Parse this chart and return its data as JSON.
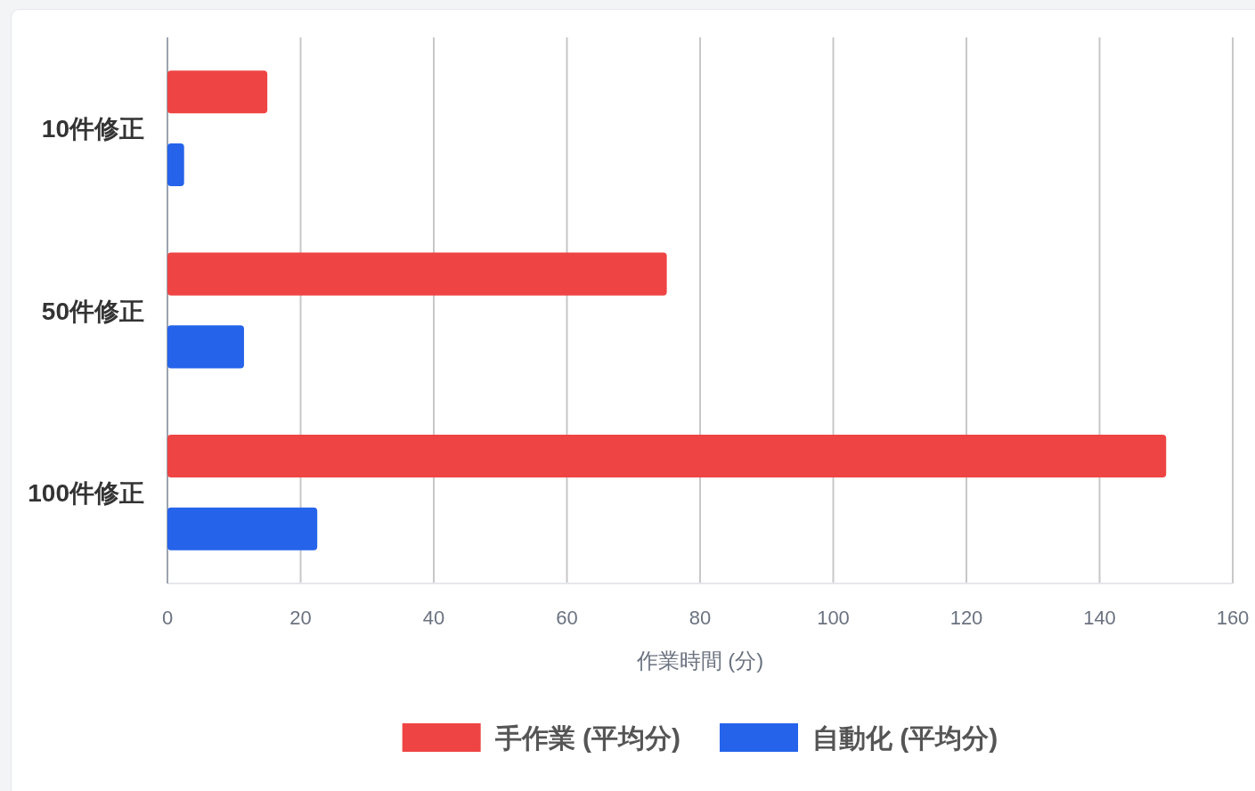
{
  "chart_data": {
    "type": "bar",
    "orientation": "horizontal",
    "categories": [
      "10件修正",
      "50件修正",
      "100件修正"
    ],
    "series": [
      {
        "name": "手作業 (平均分)",
        "color": "#ef4444",
        "values": [
          15,
          75,
          150
        ]
      },
      {
        "name": "自動化 (平均分)",
        "color": "#2563eb",
        "values": [
          2.5,
          11.5,
          22.5
        ]
      }
    ],
    "xlabel": "作業時間 (分)",
    "xlim": [
      0,
      160
    ],
    "xticks": [
      0,
      20,
      40,
      60,
      80,
      100,
      120,
      140,
      160
    ],
    "grid": "x",
    "legend": "bottom"
  }
}
